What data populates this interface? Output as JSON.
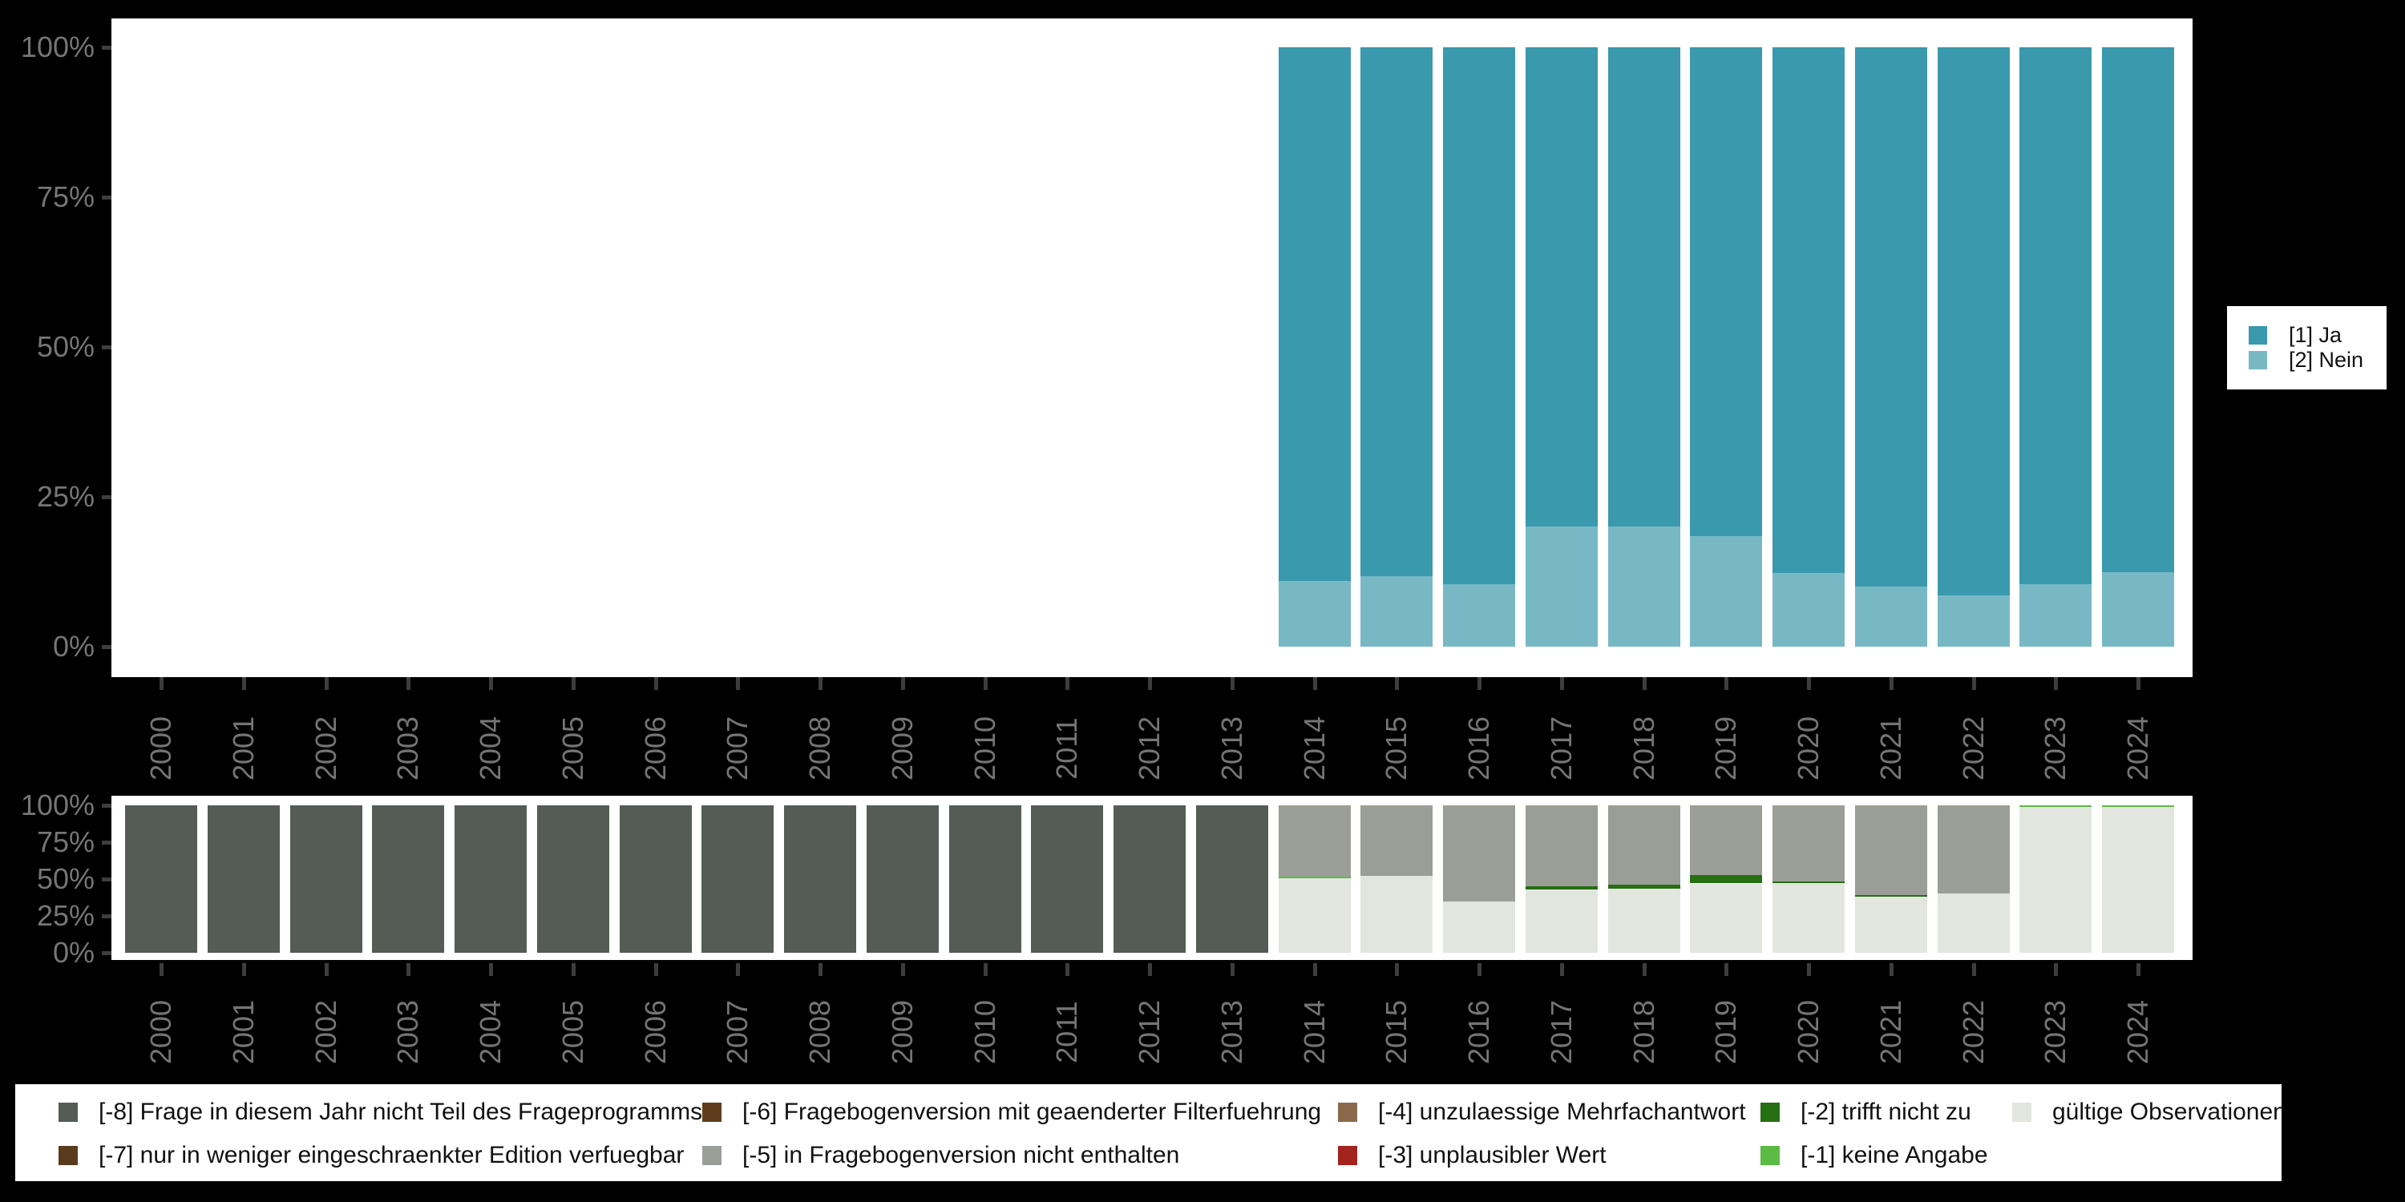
{
  "app": {
    "background": "#000000",
    "panel_background": "#ffffff",
    "axis_text_color": "#757575",
    "tick_color": "#3d3d3d",
    "legend_text_color": "#111111"
  },
  "chart_data": [
    {
      "type": "bar",
      "stacked": true,
      "title": "",
      "xlabel": "",
      "ylabel": "",
      "unit": "%",
      "ylim": [
        0,
        100
      ],
      "grid": false,
      "legend_position": "right",
      "x": [
        "2000",
        "2001",
        "2002",
        "2003",
        "2004",
        "2005",
        "2006",
        "2007",
        "2008",
        "2009",
        "2010",
        "2011",
        "2012",
        "2013",
        "2014",
        "2015",
        "2016",
        "2017",
        "2018",
        "2019",
        "2020",
        "2021",
        "2022",
        "2023",
        "2024"
      ],
      "y_tick_labels": [
        "0%",
        "25%",
        "50%",
        "75%",
        "100%"
      ],
      "series": [
        {
          "name": "[1] Ja",
          "color": "#3a99ad",
          "values": [
            null,
            null,
            null,
            null,
            null,
            null,
            null,
            null,
            null,
            null,
            null,
            null,
            null,
            null,
            89,
            88.2,
            89.5,
            80,
            80,
            81.5,
            87.7,
            90,
            91.5,
            89.6,
            87.5
          ]
        },
        {
          "name": "[2] Nein",
          "color": "#78b8c5",
          "values": [
            null,
            null,
            null,
            null,
            null,
            null,
            null,
            null,
            null,
            null,
            null,
            null,
            null,
            null,
            11,
            11.8,
            10.5,
            20,
            20,
            18.5,
            12.3,
            10,
            8.5,
            10.4,
            12.5
          ]
        }
      ]
    },
    {
      "type": "bar",
      "stacked": true,
      "title": "",
      "xlabel": "",
      "ylabel": "",
      "unit": "%",
      "ylim": [
        0,
        100
      ],
      "grid": false,
      "legend_position": "bottom",
      "x": [
        "2000",
        "2001",
        "2002",
        "2003",
        "2004",
        "2005",
        "2006",
        "2007",
        "2008",
        "2009",
        "2010",
        "2011",
        "2012",
        "2013",
        "2014",
        "2015",
        "2016",
        "2017",
        "2018",
        "2019",
        "2020",
        "2021",
        "2022",
        "2023",
        "2024"
      ],
      "y_tick_labels": [
        "0%",
        "25%",
        "50%",
        "75%",
        "100%"
      ],
      "series": [
        {
          "name": "[-8] Frage in diesem Jahr nicht Teil des Frageprogramms",
          "color": "#555b55",
          "values": [
            100,
            100,
            100,
            100,
            100,
            100,
            100,
            100,
            100,
            100,
            100,
            100,
            100,
            100,
            null,
            null,
            null,
            null,
            null,
            null,
            null,
            null,
            null,
            null,
            null
          ]
        },
        {
          "name": "[-7] nur in weniger eingeschraenkter Edition verfuegbar",
          "color": "#5a3b1e",
          "values": [
            null,
            null,
            null,
            null,
            null,
            null,
            null,
            null,
            null,
            null,
            null,
            null,
            null,
            null,
            null,
            null,
            null,
            null,
            null,
            null,
            null,
            null,
            null,
            null,
            null
          ]
        },
        {
          "name": "[-6] Fragebogenversion mit geaenderter Filterfuehrung",
          "color": "#5e3d1d",
          "values": [
            null,
            null,
            null,
            null,
            null,
            null,
            null,
            null,
            null,
            null,
            null,
            null,
            null,
            null,
            null,
            null,
            null,
            null,
            null,
            null,
            null,
            null,
            null,
            null,
            null
          ]
        },
        {
          "name": "[-5] in Fragebogenversion nicht enthalten",
          "color": "#9a9e96",
          "values": [
            null,
            null,
            null,
            null,
            null,
            null,
            null,
            null,
            null,
            null,
            null,
            null,
            null,
            null,
            48.5,
            48,
            65,
            55,
            54,
            47.5,
            51.5,
            61,
            60,
            null,
            null
          ]
        },
        {
          "name": "[-4] unzulaessige Mehrfachantwort",
          "color": "#8a6a4a",
          "values": [
            null,
            null,
            null,
            null,
            null,
            null,
            null,
            null,
            null,
            null,
            null,
            null,
            null,
            null,
            null,
            null,
            null,
            null,
            null,
            null,
            null,
            null,
            null,
            null,
            null
          ]
        },
        {
          "name": "[-3] unplausibler Wert",
          "color": "#a3231e",
          "values": [
            null,
            null,
            null,
            null,
            null,
            null,
            null,
            null,
            null,
            null,
            null,
            null,
            null,
            null,
            null,
            null,
            null,
            null,
            null,
            null,
            null,
            null,
            null,
            null,
            null
          ]
        },
        {
          "name": "[-2] trifft nicht zu",
          "color": "#266e12",
          "values": [
            null,
            null,
            null,
            null,
            null,
            null,
            null,
            null,
            null,
            null,
            null,
            null,
            null,
            null,
            null,
            null,
            null,
            2,
            2.5,
            5.5,
            1,
            1.2,
            null,
            null,
            null
          ]
        },
        {
          "name": "[-1] keine Angabe",
          "color": "#5cbb45",
          "values": [
            null,
            null,
            null,
            null,
            null,
            null,
            null,
            null,
            null,
            null,
            null,
            null,
            null,
            null,
            1,
            null,
            null,
            null,
            null,
            null,
            null,
            null,
            null,
            0.8,
            0.8
          ]
        },
        {
          "name": "gültige Observationen",
          "color": "#e2e6df",
          "values": [
            null,
            null,
            null,
            null,
            null,
            null,
            null,
            null,
            null,
            null,
            null,
            null,
            null,
            null,
            50.5,
            52,
            35,
            43,
            43.5,
            47,
            47.5,
            37.8,
            40,
            99.2,
            99.2
          ]
        }
      ]
    }
  ]
}
